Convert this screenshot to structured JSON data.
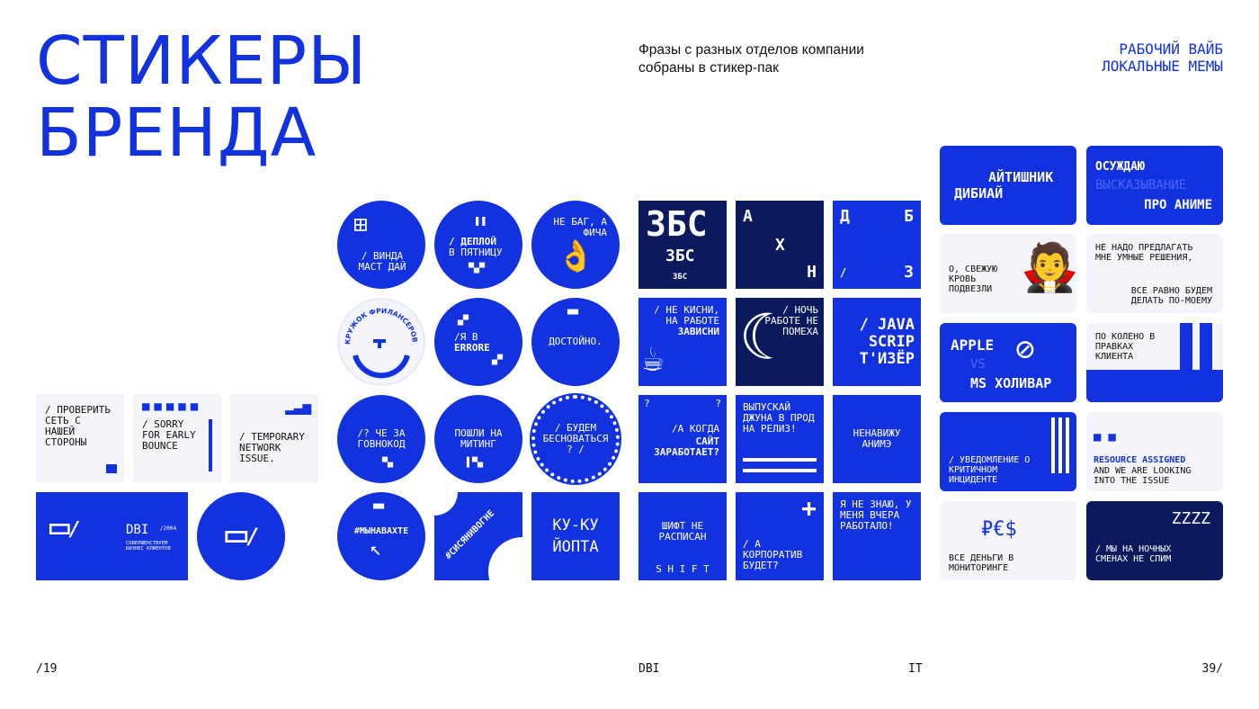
{
  "header": {
    "title_line1": "СТИКЕРЫ",
    "title_line2": "БРЕНДА",
    "subtitle_line1": "Фразы с разных отделов компании",
    "subtitle_line2": "собраны в стикер-пак",
    "tagline_line1": "РАБОЧИЙ ВАЙБ",
    "tagline_line2": "ЛОКАЛЬНЫЕ МЕМЫ"
  },
  "footer": {
    "left": "/19",
    "center1": "DBI",
    "center2": "IT",
    "right": "39/"
  },
  "left_cards": {
    "check": "/ ПРОВЕРИТЬ СЕТЬ С НАШЕЙ СТОРОНЫ",
    "sorry": "/ SORRY FOR EARLY BOUNCE",
    "temp": "/ TEMPORARY NETWORK ISSUE.",
    "dbi_name": "DBI",
    "dbi_year": "/2004",
    "dbi_slogan1": "СОВЕРШЕНСТВУЕМ",
    "dbi_slogan2": "БИЗНЕС КЛИЕНТОВ"
  },
  "circles": {
    "c1": "/ ВИНДА МАСТ ДАЙ",
    "c2a": "/ ДЕПЛОЙ",
    "c2b": "В ПЯТНИЦУ",
    "c3": "НЕ БАГ, А ФИЧА",
    "c4": "КРУЖОК ФРИЛАНСЕРОВ",
    "c5a": "/Я В",
    "c5b": "ERRORE",
    "c6": "ДОСТОЙНО.",
    "c7": "/? ЧЕ ЗА ГОВНОКОД",
    "c8": "ПОШЛИ НА МИТИНГ",
    "c9": "/ БУДЕМ БЕСНОВАТЬСЯ ? /",
    "c10": "#МЫНАВАХТЕ",
    "c11": "#СИСЯНИВОГНЕ",
    "c12a": "КУ-КУ",
    "c12b": "ЙОПТА"
  },
  "squares": {
    "s1a": "ЗБС",
    "s1b": "ЗБС",
    "s1c": "ЗБС",
    "s2a": "А",
    "s2b": "Х",
    "s2c": "Н",
    "s3a": "Д",
    "s3b": "Б",
    "s3c": "/",
    "s3d": "З",
    "s4a": "/ НЕ КИСНИ, НА РАБОТЕ",
    "s4b": "ЗАВИСНИ",
    "s5": "/ НОЧЬ РАБОТЕ НЕ ПОМЕХА",
    "s6": "/ JAVA SCRIP Т'ИЗЁР",
    "s7a": "/А КОГДА",
    "s7b": "САЙТ ЗАРАБОТАЕТ?",
    "s8": "ВЫПУСКАЙ ДЖУНА В ПРОД НА РЕЛИЗ!",
    "s9": "НЕНАВИЖУ АНИМЭ",
    "s10a": "ШИФТ НЕ РАСПИСАН",
    "s10b": "S H I F T",
    "s11": "/ А КОРПОРАТИВ БУДЕТ?",
    "s12": "Я НЕ ЗНАЮ, У МЕНЯ ВЧЕРА РАБОТАЛО!"
  },
  "right_cards": {
    "r1a": "АЙТИШНИК",
    "r1b": "ДИБИАЙ",
    "r2a": "ОСУЖДАЮ",
    "r2b": "ВЫСКАЗЫВАНИЕ",
    "r2c": "ПРО АНИМЕ",
    "r3": "О, СВЕЖУЮ КРОВЬ ПОДВЕЗЛИ",
    "r4a": "НЕ НАДО ПРЕДЛАГАТЬ МНЕ УМНЫЕ РЕШЕНИЯ,",
    "r4b": "ВСЕ РАВНО БУДЕМ ДЕЛАТЬ ПО-МОЕМУ",
    "r5a": "APPLE",
    "r5b": "VS",
    "r5c": "MS ХОЛИВАР",
    "r6": "ПО КОЛЕНО В ПРАВКАХ КЛИЕНТА",
    "r7": "/ УВЕДОМЛЕНИЕ О КРИТИЧНОМ ИНЦИДЕНТЕ",
    "r8a": "RESOURCE ASSIGNED",
    "r8b": "AND WE ARE LOOKING INTO THE ISSUE",
    "r9": "ВСЕ ДЕНЬГИ В МОНИТОРИНГЕ",
    "r10a": "/ МЫ НА НОЧНЫХ СМЕНАХ НЕ СПИМ",
    "r10b": "zzZZ"
  }
}
